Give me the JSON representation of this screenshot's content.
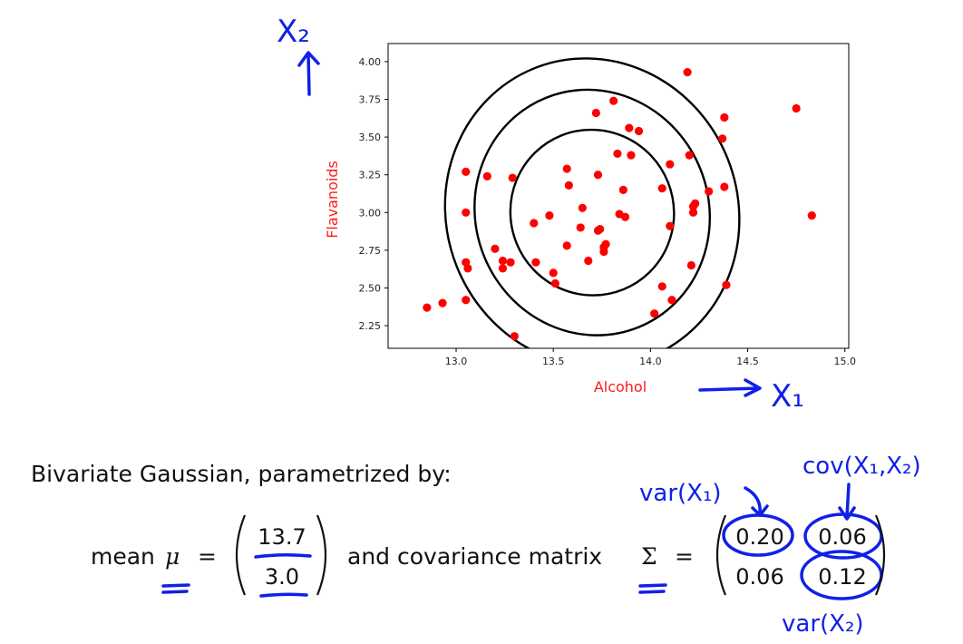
{
  "chart_data": {
    "type": "scatter",
    "xlabel": "Alcohol",
    "ylabel": "Flavanoids",
    "xlim": [
      12.65,
      15.02
    ],
    "ylim": [
      2.1,
      4.12
    ],
    "xticks": [
      "13.0",
      "13.5",
      "14.0",
      "14.5",
      "15.0"
    ],
    "xtick_values": [
      13.0,
      13.5,
      14.0,
      14.5,
      15.0
    ],
    "yticks": [
      "2.25",
      "2.50",
      "2.75",
      "3.00",
      "3.25",
      "3.50",
      "3.75",
      "4.00"
    ],
    "ytick_values": [
      2.25,
      2.5,
      2.75,
      3.0,
      3.25,
      3.5,
      3.75,
      4.0
    ],
    "grid": false,
    "point_color": "#ff0000",
    "contour_color": "#000000",
    "points": [
      [
        12.85,
        2.37
      ],
      [
        12.93,
        2.4
      ],
      [
        13.05,
        3.27
      ],
      [
        13.05,
        3.0
      ],
      [
        13.05,
        2.67
      ],
      [
        13.06,
        2.63
      ],
      [
        13.05,
        2.42
      ],
      [
        13.16,
        3.24
      ],
      [
        13.2,
        2.76
      ],
      [
        13.24,
        2.68
      ],
      [
        13.24,
        2.63
      ],
      [
        13.28,
        2.67
      ],
      [
        13.29,
        3.23
      ],
      [
        13.3,
        2.18
      ],
      [
        13.4,
        2.93
      ],
      [
        13.41,
        2.67
      ],
      [
        13.48,
        2.98
      ],
      [
        13.5,
        2.6
      ],
      [
        13.51,
        2.53
      ],
      [
        13.57,
        3.29
      ],
      [
        13.58,
        3.18
      ],
      [
        13.57,
        2.78
      ],
      [
        13.64,
        2.9
      ],
      [
        13.65,
        3.03
      ],
      [
        13.68,
        2.68
      ],
      [
        13.72,
        3.66
      ],
      [
        13.73,
        3.25
      ],
      [
        13.73,
        2.88
      ],
      [
        13.74,
        2.89
      ],
      [
        13.76,
        2.77
      ],
      [
        13.76,
        2.74
      ],
      [
        13.77,
        2.79
      ],
      [
        13.81,
        3.74
      ],
      [
        13.83,
        3.39
      ],
      [
        13.84,
        2.99
      ],
      [
        13.86,
        3.15
      ],
      [
        13.87,
        2.97
      ],
      [
        13.89,
        3.56
      ],
      [
        13.9,
        3.38
      ],
      [
        13.94,
        3.54
      ],
      [
        14.02,
        2.33
      ],
      [
        14.06,
        3.16
      ],
      [
        14.06,
        2.51
      ],
      [
        14.1,
        2.91
      ],
      [
        14.1,
        3.32
      ],
      [
        14.11,
        2.42
      ],
      [
        14.19,
        3.93
      ],
      [
        14.2,
        3.38
      ],
      [
        14.21,
        2.65
      ],
      [
        14.22,
        3.0
      ],
      [
        14.22,
        3.04
      ],
      [
        14.23,
        3.06
      ],
      [
        14.3,
        3.14
      ],
      [
        14.37,
        3.49
      ],
      [
        14.38,
        3.63
      ],
      [
        14.38,
        3.17
      ],
      [
        14.39,
        2.52
      ],
      [
        14.75,
        3.69
      ],
      [
        14.83,
        2.98
      ]
    ],
    "contours": [
      {
        "cx": 13.7,
        "cy": 3.0,
        "rx": 0.42,
        "ry": 0.55,
        "angle_deg": -22
      },
      {
        "cx": 13.7,
        "cy": 3.0,
        "rx": 0.6,
        "ry": 0.82,
        "angle_deg": -22
      },
      {
        "cx": 13.7,
        "cy": 3.0,
        "rx": 0.75,
        "ry": 1.03,
        "angle_deg": -22
      }
    ]
  },
  "annotations": {
    "x2": "X₂",
    "x1": "X₁",
    "var_x1": "var(X₁)",
    "cov": "cov(X₁,X₂)",
    "var_x2": "var(X₂)",
    "ink_color": "#1020e8"
  },
  "text": {
    "heading": "Bivariate Gaussian, parametrized by:",
    "mean_word": "mean",
    "mu": "μ",
    "equals": "=",
    "mean_top": "13.7",
    "mean_bottom": "3.0",
    "and_cov": "and covariance matrix",
    "sigma": "Σ",
    "cov_00": "0.20",
    "cov_01": "0.06",
    "cov_10": "0.06",
    "cov_11": "0.12"
  }
}
